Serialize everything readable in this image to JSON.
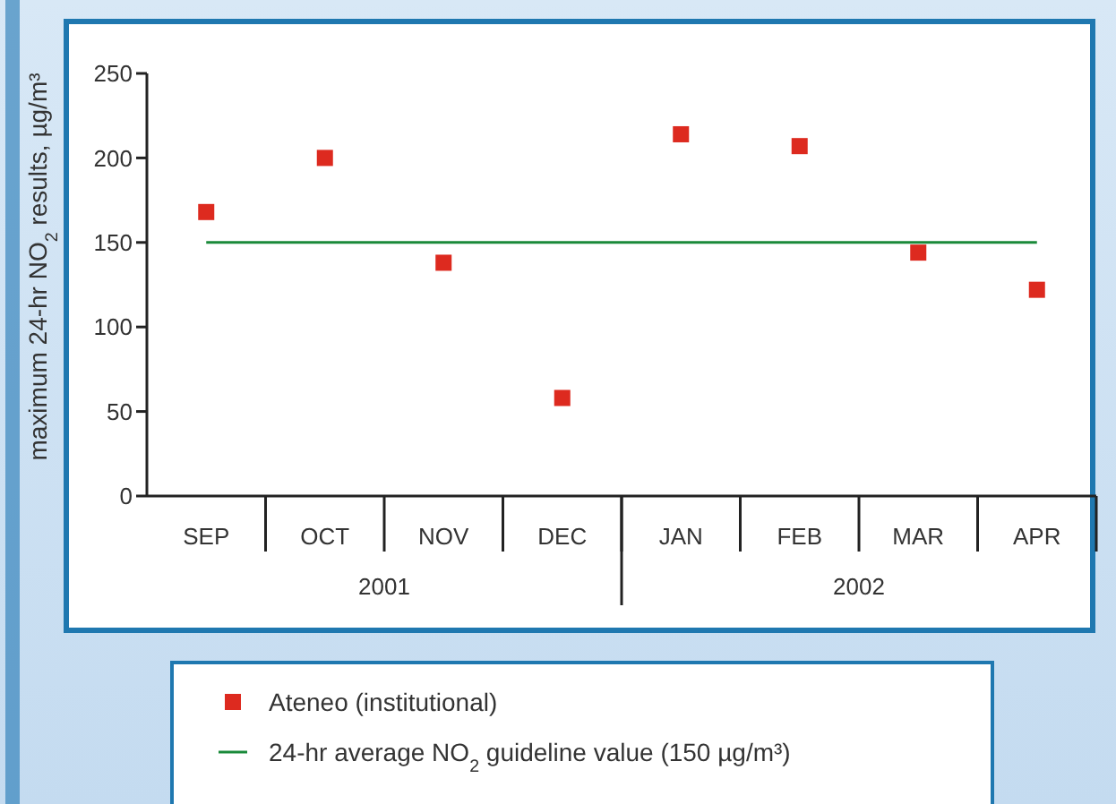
{
  "chart_data": {
    "type": "scatter",
    "ylabel": "maximum 24-hr NO$_{2}$ results, µg/m³",
    "categories": [
      "SEP",
      "OCT",
      "NOV",
      "DEC",
      "JAN",
      "FEB",
      "MAR",
      "APR"
    ],
    "series": [
      {
        "name": "Ateneo (institutional)",
        "color": "#dd2a1f",
        "values": [
          168,
          200,
          138,
          58,
          214,
          207,
          144,
          122
        ]
      }
    ],
    "marker": "square",
    "ylim": [
      0,
      250
    ],
    "yticks": [
      0,
      50,
      100,
      150,
      200,
      250
    ],
    "ref_lines": [
      {
        "axis": "y",
        "value": 150,
        "label": "24-hr average NO$_{2}$ guideline value (150 µg/m³)",
        "color": "#1a8a3a"
      }
    ],
    "annotations": [
      "2001",
      "2002"
    ],
    "legend": "bottom",
    "grid": false
  }
}
